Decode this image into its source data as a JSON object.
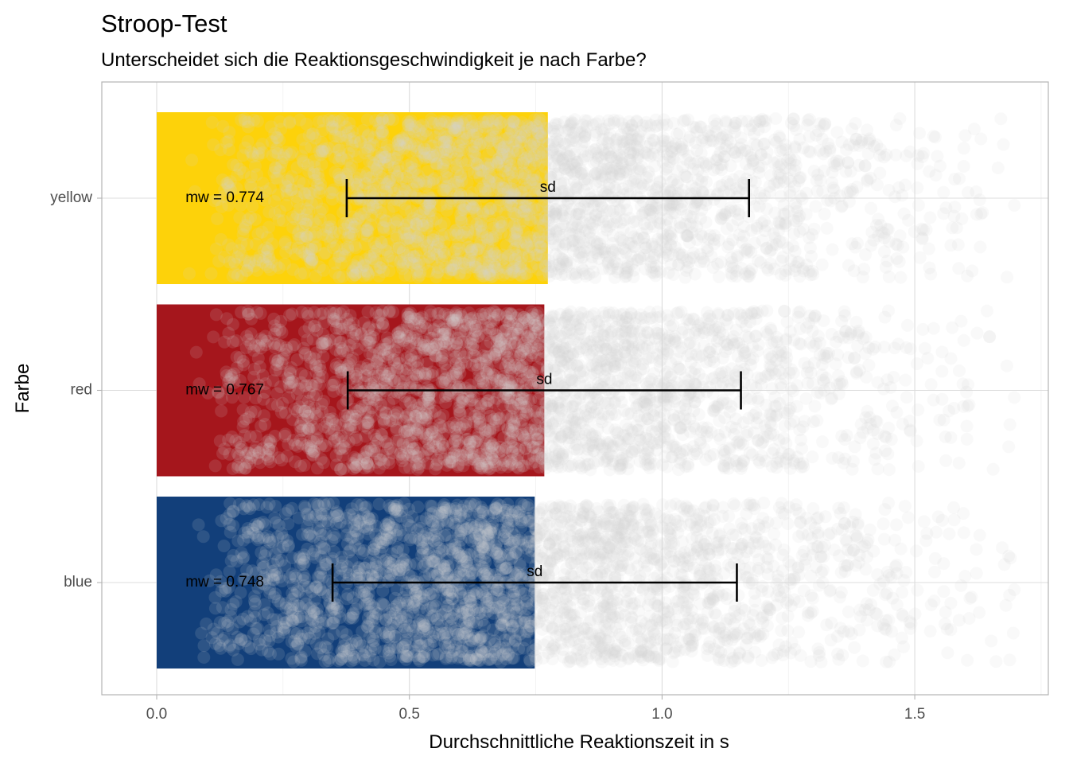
{
  "chart_data": {
    "type": "bar",
    "title": "Stroop-Test",
    "subtitle": "Unterscheidet sich die Reaktionsgeschwindigkeit je nach Farbe?",
    "xlabel": "Durchschnittliche Reaktionszeit in s",
    "ylabel": "Farbe",
    "xlim": [
      -0.11,
      1.77
    ],
    "x_ticks": [
      0.0,
      0.5,
      1.0,
      1.5
    ],
    "x_tick_labels": [
      "0.0",
      "0.5",
      "1.0",
      "1.5"
    ],
    "x_minor_ticks": [
      0.25,
      0.75,
      1.25,
      1.75
    ],
    "categories": [
      "blue",
      "red",
      "yellow"
    ],
    "grid": true,
    "points": {
      "color": "#d4d4d4",
      "opacity": 0.14,
      "x_range": [
        0.05,
        1.7
      ]
    },
    "bars": [
      {
        "category": "blue",
        "mean": 0.748,
        "sd_low": 0.348,
        "sd_high": 1.148,
        "color": "#123f7a",
        "mean_label": "mw = 0.748",
        "sd_label": "sd"
      },
      {
        "category": "red",
        "mean": 0.767,
        "sd_low": 0.378,
        "sd_high": 1.156,
        "color": "#a5161c",
        "mean_label": "mw = 0.767",
        "sd_label": "sd"
      },
      {
        "category": "yellow",
        "mean": 0.774,
        "sd_low": 0.376,
        "sd_high": 1.172,
        "color": "#fdd20a",
        "mean_label": "mw = 0.774",
        "sd_label": "sd"
      }
    ]
  }
}
